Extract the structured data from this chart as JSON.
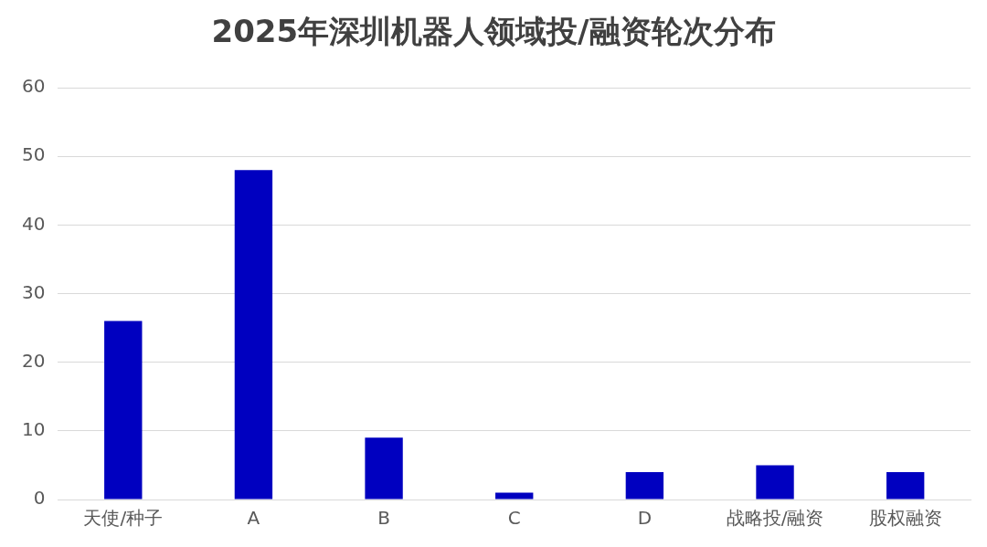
{
  "chart_data": {
    "type": "bar",
    "title": "2025年深圳机器人领域投/融资轮次分布",
    "categories": [
      "天使/种子",
      "A",
      "B",
      "C",
      "D",
      "战略投/融资",
      "股权融资"
    ],
    "values": [
      26,
      48,
      9,
      1,
      4,
      5,
      4
    ],
    "color": "#0000c0",
    "ylim": [
      0,
      60
    ],
    "yticks": [
      0,
      10,
      20,
      30,
      40,
      50,
      60
    ],
    "grid": "y",
    "legend": false
  }
}
